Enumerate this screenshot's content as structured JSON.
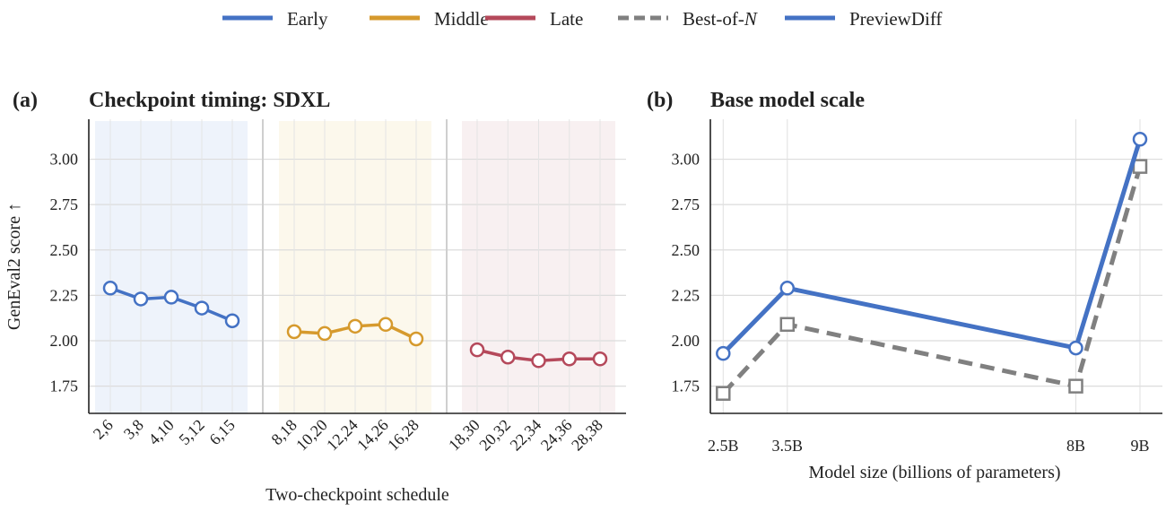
{
  "legend": [
    {
      "label": "Early",
      "color": "#4472c4",
      "dashed": false
    },
    {
      "label": "Middle",
      "color": "#d69a2d",
      "dashed": false
    },
    {
      "label": "Late",
      "color": "#b5495b",
      "dashed": false
    },
    {
      "label": "Best-of-",
      "label_italic": "N",
      "color": "#808080",
      "dashed": true
    },
    {
      "label": "PreviewDiff",
      "color": "#4472c4",
      "dashed": false
    }
  ],
  "panel_a": {
    "label": "(a)",
    "title": "Checkpoint timing: SDXL"
  },
  "panel_b": {
    "label": "(b)",
    "title": "Base model scale"
  },
  "chart_data": [
    {
      "type": "line",
      "title": "Checkpoint timing: SDXL",
      "xlabel": "Two-checkpoint schedule",
      "ylabel": "GenEval2 score ↑",
      "ylim": [
        1.6,
        3.22
      ],
      "yticks": [
        1.75,
        2.0,
        2.25,
        2.5,
        2.75,
        3.0
      ],
      "ytick_labels": [
        "1.75",
        "2.00",
        "2.25",
        "2.50",
        "2.75",
        "3.00"
      ],
      "grid": true,
      "groups": [
        {
          "name": "Early",
          "color": "#4472c4",
          "shade": "#eef3fb",
          "categories": [
            "2,6",
            "3,8",
            "4,10",
            "5,12",
            "6,15"
          ],
          "values": [
            2.29,
            2.23,
            2.24,
            2.18,
            2.11
          ]
        },
        {
          "name": "Middle",
          "color": "#d69a2d",
          "shade": "#fcf8ec",
          "categories": [
            "8,18",
            "10,20",
            "12,24",
            "14,26",
            "16,28"
          ],
          "values": [
            2.05,
            2.04,
            2.08,
            2.09,
            2.01
          ]
        },
        {
          "name": "Late",
          "color": "#b5495b",
          "shade": "#f8f0f1",
          "categories": [
            "18,30",
            "20,32",
            "22,34",
            "24,36",
            "28,38"
          ],
          "values": [
            1.95,
            1.91,
            1.89,
            1.9,
            1.9
          ]
        }
      ]
    },
    {
      "type": "line",
      "title": "Base model scale",
      "xlabel": "Model size (billions of parameters)",
      "ylabel": "",
      "x": [
        2.5,
        3.5,
        8,
        9
      ],
      "xtick_labels": [
        "2.5B",
        "3.5B",
        "8B",
        "9B"
      ],
      "xlim": [
        2.3,
        9.35
      ],
      "ylim": [
        1.6,
        3.22
      ],
      "yticks": [
        1.75,
        2.0,
        2.25,
        2.5,
        2.75,
        3.0
      ],
      "ytick_labels": [
        "1.75",
        "2.00",
        "2.25",
        "2.50",
        "2.75",
        "3.00"
      ],
      "grid": true,
      "series": [
        {
          "name": "Best-of-N",
          "color": "#808080",
          "dashed": true,
          "marker": "square",
          "values": [
            1.71,
            2.09,
            1.75,
            2.96
          ]
        },
        {
          "name": "PreviewDiff",
          "color": "#4472c4",
          "dashed": false,
          "marker": "circle",
          "values": [
            1.93,
            2.29,
            1.96,
            3.11
          ]
        }
      ]
    }
  ]
}
